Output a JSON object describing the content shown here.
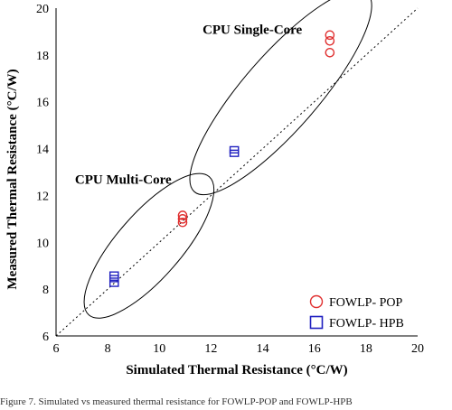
{
  "chart_data": {
    "type": "scatter",
    "xlabel": "Simulated Thermal Resistance (°C/W)",
    "ylabel": "Measured Thermal Resistance (°C/W)",
    "xlim": [
      6,
      20
    ],
    "ylim": [
      6,
      20
    ],
    "xticks": [
      6,
      8,
      10,
      12,
      14,
      16,
      18,
      20
    ],
    "yticks": [
      6,
      8,
      10,
      12,
      14,
      16,
      18,
      20
    ],
    "grid": false,
    "legend_position": "bottom-right",
    "reference_line": {
      "style": "dotted",
      "from": [
        6,
        6
      ],
      "to": [
        20,
        20
      ]
    },
    "series": [
      {
        "name": "FOWLP- POP",
        "marker": "circle",
        "color": "#e03030",
        "points": [
          [
            10.9,
            10.85
          ],
          [
            10.9,
            11.0
          ],
          [
            10.9,
            11.15
          ],
          [
            16.6,
            18.1
          ],
          [
            16.6,
            18.6
          ],
          [
            16.6,
            18.85
          ]
        ]
      },
      {
        "name": "FOWLP- HPB",
        "marker": "square",
        "color": "#2020c0",
        "points": [
          [
            8.25,
            8.25
          ],
          [
            8.25,
            8.45
          ],
          [
            8.25,
            8.6
          ],
          [
            12.9,
            13.8
          ],
          [
            12.9,
            13.95
          ]
        ]
      }
    ],
    "annotations": [
      {
        "text": "CPU Single-Core",
        "x": 13.6,
        "y": 18.9
      },
      {
        "text": "CPU Multi-Core",
        "x": 8.6,
        "y": 12.5
      }
    ],
    "ellipses": [
      {
        "cx": 14.7,
        "cy": 16.4,
        "rx": 5.1,
        "ry": 1.45,
        "angle_deg": 49
      },
      {
        "cx": 9.6,
        "cy": 9.85,
        "rx": 3.55,
        "ry": 1.25,
        "angle_deg": 49
      }
    ]
  },
  "caption": "Figure 7. Simulated vs measured thermal resistance for FOWLP-POP and FOWLP-HPB"
}
